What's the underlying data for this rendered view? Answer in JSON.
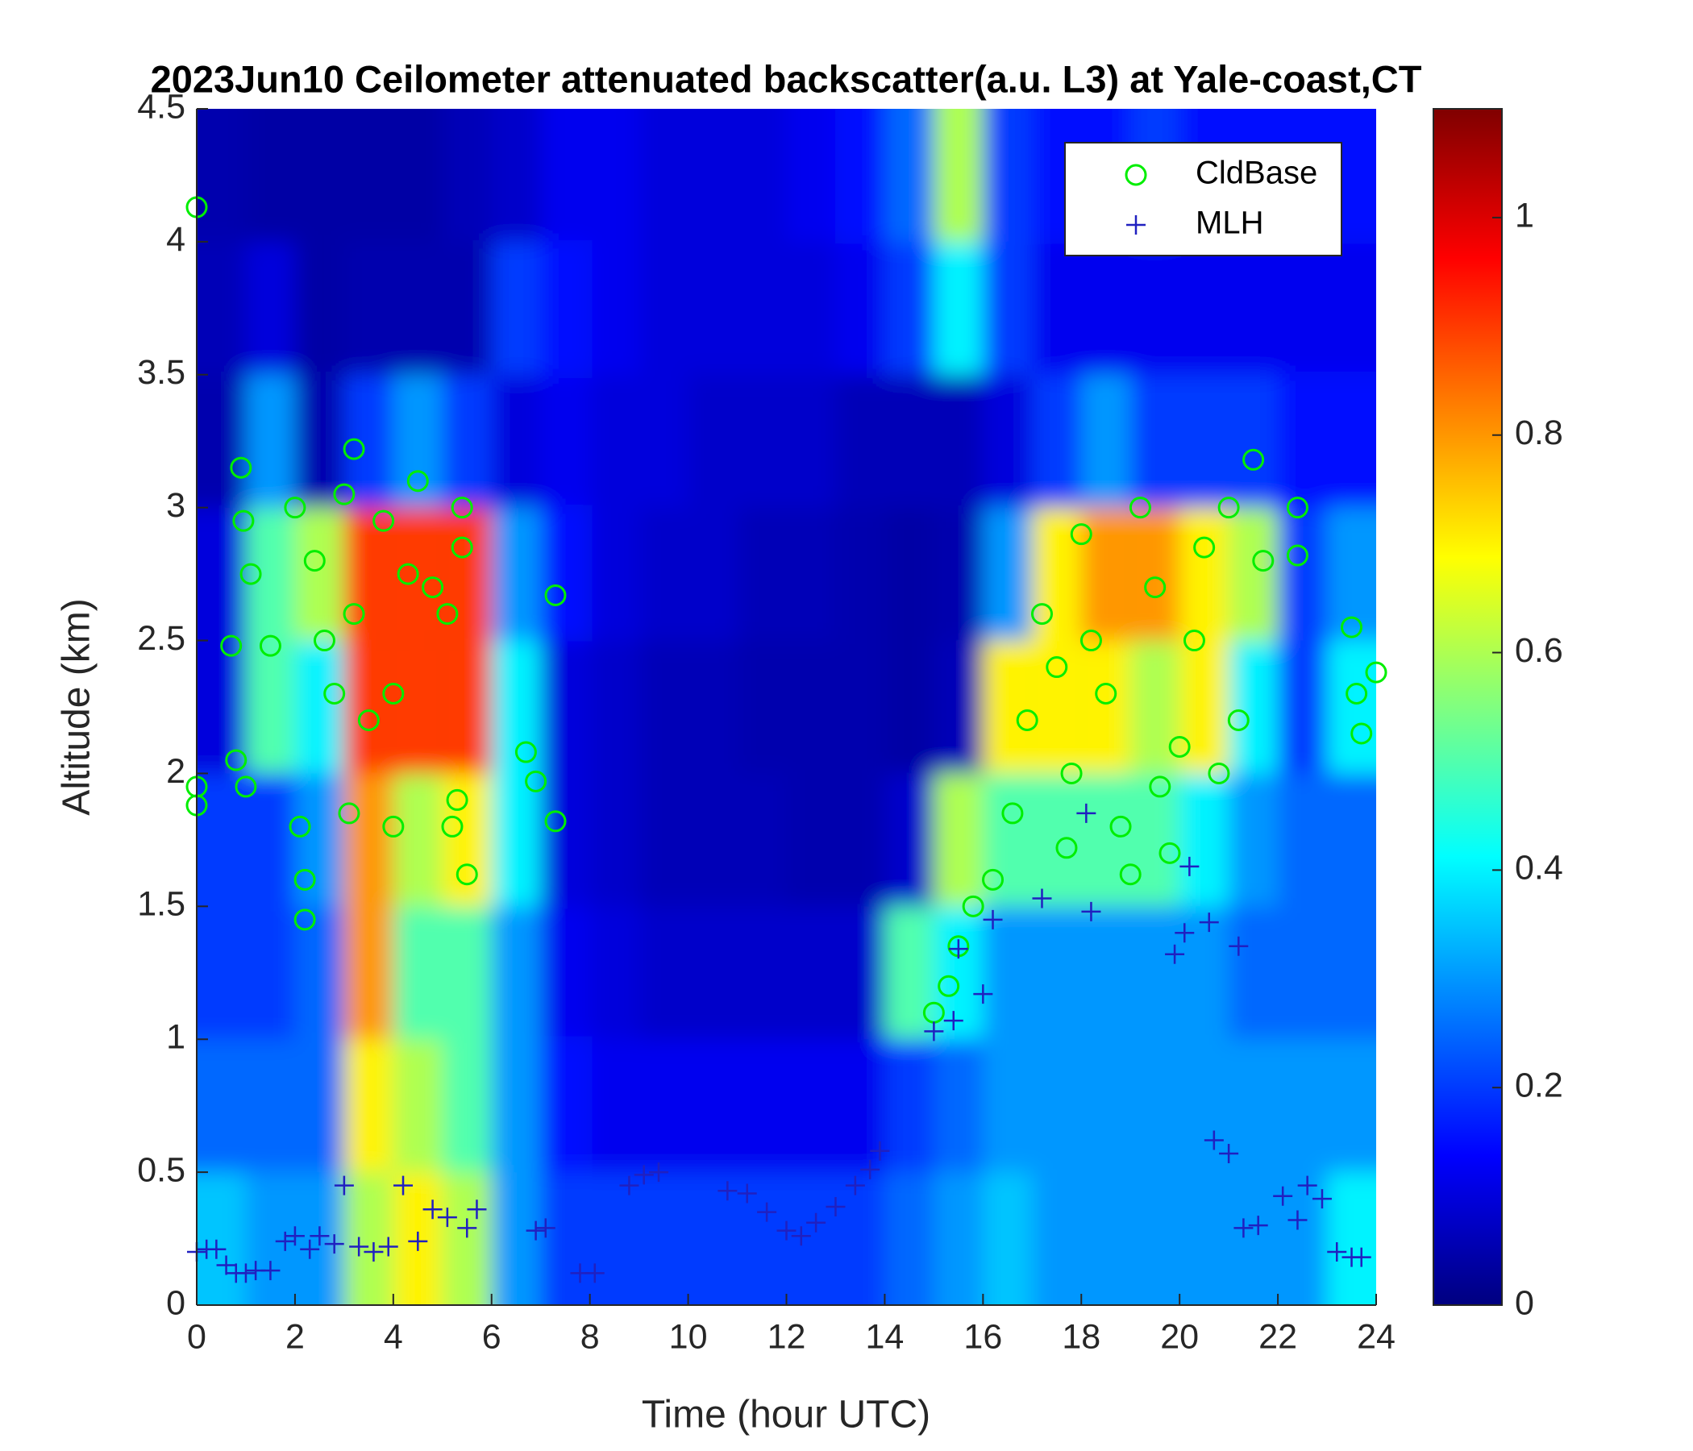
{
  "chart_data": {
    "type": "heatmap",
    "title": "2023Jun10 Ceilometer attenuated backscatter(a.u. L3) at Yale-coast,CT",
    "xlabel": "Time (hour UTC)",
    "ylabel": "Altitude (km)",
    "xlim": [
      0,
      24
    ],
    "ylim": [
      0,
      4.5
    ],
    "xticks": [
      0,
      2,
      4,
      6,
      8,
      10,
      12,
      14,
      16,
      18,
      20,
      22,
      24
    ],
    "yticks": [
      0,
      0.5,
      1,
      1.5,
      2,
      2.5,
      3,
      3.5,
      4,
      4.5
    ],
    "colormap": "jet",
    "clim": [
      0,
      1.1
    ],
    "cticks": [
      0,
      0.2,
      0.4,
      0.6,
      0.8,
      1
    ],
    "x": [
      0.5,
      1.5,
      2.5,
      3.5,
      4.5,
      5.5,
      6.5,
      7.5,
      8.5,
      9.5,
      10.5,
      11.5,
      12.5,
      13.5,
      14.5,
      15.5,
      16.5,
      17.5,
      18.5,
      19.5,
      20.5,
      21.5,
      22.5,
      23.5
    ],
    "y": [
      0.25,
      0.75,
      1.25,
      1.75,
      2.25,
      2.75,
      3.25,
      3.75,
      4.25
    ],
    "z": [
      [
        0.35,
        0.3,
        0.3,
        0.6,
        0.7,
        0.6,
        0.3,
        0.2,
        0.2,
        0.2,
        0.2,
        0.2,
        0.2,
        0.2,
        0.25,
        0.3,
        0.35,
        0.3,
        0.3,
        0.3,
        0.3,
        0.3,
        0.3,
        0.4
      ],
      [
        0.25,
        0.25,
        0.25,
        0.7,
        0.6,
        0.5,
        0.3,
        0.15,
        0.12,
        0.12,
        0.12,
        0.12,
        0.12,
        0.12,
        0.2,
        0.25,
        0.3,
        0.3,
        0.3,
        0.3,
        0.3,
        0.3,
        0.3,
        0.3
      ],
      [
        0.2,
        0.2,
        0.25,
        0.8,
        0.5,
        0.5,
        0.3,
        0.12,
        0.1,
        0.08,
        0.08,
        0.08,
        0.08,
        0.08,
        0.5,
        0.4,
        0.3,
        0.3,
        0.3,
        0.3,
        0.3,
        0.25,
        0.25,
        0.25
      ],
      [
        0.2,
        0.2,
        0.3,
        0.8,
        0.6,
        0.7,
        0.4,
        0.1,
        0.08,
        0.06,
        0.06,
        0.06,
        0.05,
        0.05,
        0.08,
        0.6,
        0.5,
        0.5,
        0.5,
        0.5,
        0.4,
        0.3,
        0.25,
        0.25
      ],
      [
        0.1,
        0.5,
        0.4,
        0.9,
        0.9,
        0.9,
        0.4,
        0.1,
        0.08,
        0.06,
        0.06,
        0.05,
        0.05,
        0.05,
        0.04,
        0.06,
        0.7,
        0.7,
        0.7,
        0.6,
        0.7,
        0.4,
        0.2,
        0.4
      ],
      [
        0.1,
        0.5,
        0.6,
        0.9,
        0.9,
        0.9,
        0.3,
        0.15,
        0.1,
        0.08,
        0.08,
        0.06,
        0.06,
        0.05,
        0.04,
        0.05,
        0.3,
        0.7,
        0.8,
        0.8,
        0.7,
        0.6,
        0.2,
        0.3
      ],
      [
        0.05,
        0.3,
        0.05,
        0.2,
        0.3,
        0.2,
        0.1,
        0.12,
        0.1,
        0.1,
        0.08,
        0.08,
        0.08,
        0.06,
        0.06,
        0.06,
        0.1,
        0.2,
        0.3,
        0.2,
        0.2,
        0.2,
        0.15,
        0.15
      ],
      [
        0.06,
        0.1,
        0.04,
        0.05,
        0.05,
        0.05,
        0.2,
        0.15,
        0.12,
        0.1,
        0.1,
        0.1,
        0.1,
        0.12,
        0.2,
        0.4,
        0.2,
        0.12,
        0.12,
        0.12,
        0.12,
        0.12,
        0.12,
        0.12
      ],
      [
        0.05,
        0.04,
        0.04,
        0.04,
        0.04,
        0.06,
        0.08,
        0.12,
        0.12,
        0.1,
        0.1,
        0.1,
        0.12,
        0.15,
        0.25,
        0.6,
        0.2,
        0.15,
        0.15,
        0.2,
        0.15,
        0.15,
        0.15,
        0.15
      ]
    ],
    "legend": "upper right",
    "series": [
      {
        "name": "CldBase",
        "color": "#00ee00",
        "marker": "circle",
        "x": [
          0,
          0,
          0,
          0.9,
          0.95,
          0.7,
          1.0,
          1.1,
          0.8,
          1.5,
          2.0,
          2.1,
          2.2,
          2.2,
          2.4,
          2.6,
          2.8,
          3.0,
          3.2,
          3.1,
          3.2,
          3.5,
          3.8,
          4.0,
          4.0,
          4.3,
          4.5,
          4.8,
          5.1,
          5.4,
          5.4,
          5.3,
          5.5,
          5.2,
          6.7,
          6.9,
          7.3,
          7.3,
          15,
          15.3,
          15.5,
          15.8,
          16.2,
          16.6,
          16.9,
          17.2,
          17.5,
          17.8,
          17.7,
          18,
          18.2,
          18.5,
          18.8,
          19,
          19.2,
          19.5,
          19.6,
          19.8,
          20,
          20.3,
          20.5,
          20.8,
          21,
          21.2,
          21.5,
          21.7,
          22.4,
          22.4,
          23.5,
          23.6,
          23.7,
          24
        ],
        "values": [
          4.13,
          1.95,
          1.88,
          3.15,
          2.95,
          2.48,
          1.95,
          2.75,
          2.05,
          2.48,
          3.0,
          1.8,
          1.6,
          1.45,
          2.8,
          2.5,
          2.3,
          3.05,
          3.22,
          1.85,
          2.6,
          2.2,
          2.95,
          2.3,
          1.8,
          2.75,
          3.1,
          2.7,
          2.6,
          3.0,
          2.85,
          1.9,
          1.62,
          1.8,
          2.08,
          1.97,
          2.67,
          1.82,
          1.1,
          1.2,
          1.35,
          1.5,
          1.6,
          1.85,
          2.2,
          2.6,
          2.4,
          2.0,
          1.72,
          2.9,
          2.5,
          2.3,
          1.8,
          1.62,
          3.0,
          2.7,
          1.95,
          1.7,
          2.1,
          2.5,
          2.85,
          2.0,
          3.0,
          2.2,
          3.18,
          2.8,
          3.0,
          2.82,
          2.55,
          2.3,
          2.15,
          2.38
        ]
      },
      {
        "name": "MLH",
        "color": "#2020c0",
        "marker": "plus",
        "x": [
          0,
          0.2,
          0.4,
          0.6,
          0.8,
          1.0,
          1.2,
          1.5,
          1.8,
          2.0,
          2.3,
          2.5,
          2.8,
          3.0,
          3.3,
          3.6,
          3.9,
          4.2,
          4.5,
          4.8,
          5.1,
          5.5,
          5.7,
          6.9,
          7.1,
          7.8,
          8.1,
          8.8,
          9.1,
          9.4,
          10.8,
          11.2,
          11.6,
          12.0,
          12.3,
          12.6,
          13.0,
          13.4,
          13.7,
          13.9,
          15.0,
          15.4,
          15.5,
          16.0,
          16.2,
          17.2,
          18.1,
          18.2,
          19.9,
          20.1,
          20.2,
          20.6,
          20.7,
          21.0,
          21.2,
          21.3,
          21.6,
          22.1,
          22.4,
          22.6,
          22.9,
          23.2,
          23.5,
          23.7
        ],
        "values": [
          0.2,
          0.21,
          0.21,
          0.15,
          0.12,
          0.12,
          0.13,
          0.13,
          0.24,
          0.26,
          0.21,
          0.26,
          0.23,
          0.45,
          0.22,
          0.2,
          0.22,
          0.45,
          0.24,
          0.36,
          0.33,
          0.29,
          0.36,
          0.28,
          0.29,
          0.12,
          0.12,
          0.45,
          0.49,
          0.5,
          0.43,
          0.42,
          0.35,
          0.28,
          0.26,
          0.31,
          0.37,
          0.45,
          0.51,
          0.58,
          1.03,
          1.07,
          1.34,
          1.17,
          1.45,
          1.53,
          1.85,
          1.48,
          1.32,
          1.4,
          1.65,
          1.44,
          0.62,
          0.57,
          1.35,
          0.29,
          0.3,
          0.41,
          0.32,
          0.45,
          0.4,
          0.2,
          0.18,
          0.18
        ]
      }
    ]
  }
}
